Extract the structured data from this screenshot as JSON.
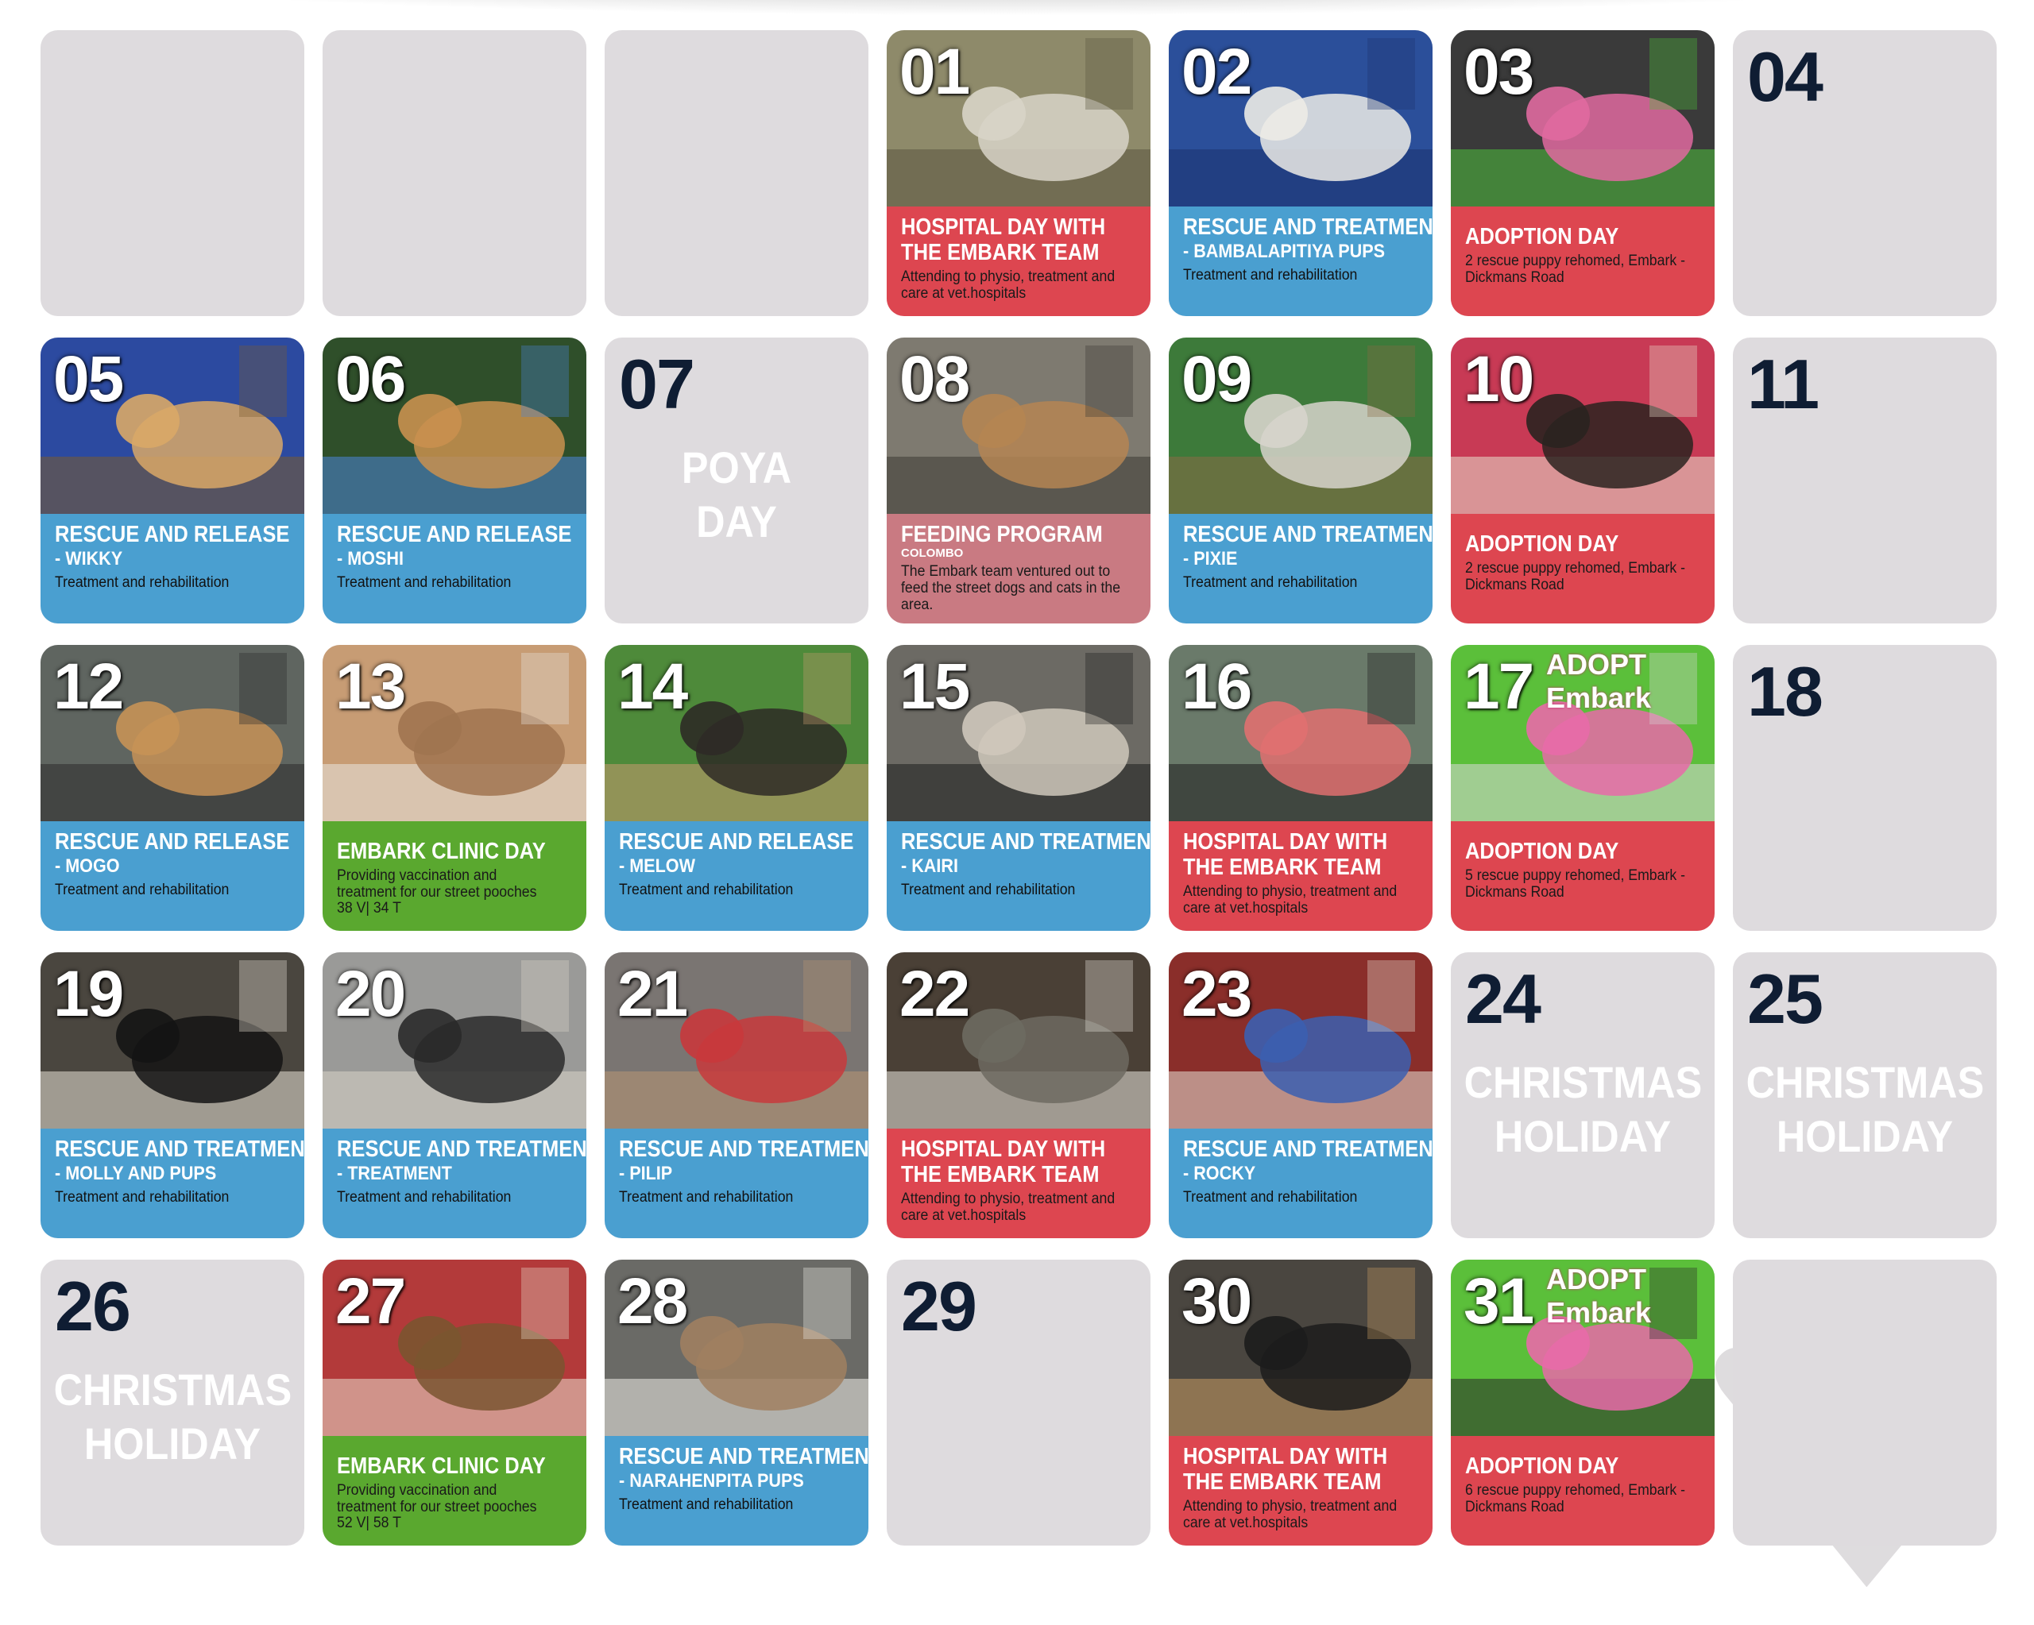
{
  "calendar": {
    "cells": [
      {
        "type": "empty"
      },
      {
        "type": "empty"
      },
      {
        "type": "empty"
      },
      {
        "type": "event",
        "day": "01",
        "color": "red",
        "title1": "HOSPITAL DAY WITH",
        "title2": "THE EMBARK TEAM",
        "desc": "Attending to physio, treatment and care at vet.hospitals",
        "photo": "dog-with-cone"
      },
      {
        "type": "event",
        "day": "02",
        "color": "blue",
        "title1": "RESCUE AND TREATMENT",
        "title2": "- BAMBALAPITIYA PUPS",
        "desc": "Treatment and rehabilitation",
        "photo": "puppies-on-blanket"
      },
      {
        "type": "event",
        "day": "03",
        "color": "red",
        "title1": "ADOPTION DAY",
        "title2": "",
        "desc": "2 rescue puppy rehomed, Embark - Dickmans Road",
        "photo": "adoption-family"
      },
      {
        "type": "plain",
        "day": "04"
      },
      {
        "type": "event",
        "day": "05",
        "color": "blue",
        "title1": "RESCUE AND RELEASE",
        "title2": "- WIKKY",
        "desc": "Treatment and rehabilitation",
        "photo": "man-holding-dog"
      },
      {
        "type": "event",
        "day": "06",
        "color": "blue",
        "title1": "RESCUE AND RELEASE",
        "title2": "- MOSHI",
        "desc": "Treatment and rehabilitation",
        "photo": "gloved-hands-dog"
      },
      {
        "type": "holiday",
        "day": "07",
        "line1": "POYA",
        "line2": "DAY"
      },
      {
        "type": "event",
        "day": "08",
        "color": "mauve",
        "title1": "FEEDING PROGRAM",
        "tag": "COLOMBO",
        "desc": "The Embark team ventured out to feed the street dogs and cats in the area.",
        "photo": "street-dogs-feeding"
      },
      {
        "type": "event",
        "day": "09",
        "color": "blue",
        "title1": "RESCUE AND TREATMENT",
        "title2": "- PIXIE",
        "desc": "Treatment and rehabilitation",
        "photo": "dog-on-green-towel"
      },
      {
        "type": "event",
        "day": "10",
        "color": "red",
        "title1": "ADOPTION DAY",
        "title2": "",
        "desc": "2 rescue puppy rehomed, Embark - Dickmans Road",
        "photo": "woman-with-puppy"
      },
      {
        "type": "plain",
        "day": "11"
      },
      {
        "type": "event",
        "day": "12",
        "color": "blue",
        "title1": "RESCUE AND RELEASE",
        "title2": "- MOGO",
        "desc": "Treatment and rehabilitation",
        "photo": "man-holding-dog-street"
      },
      {
        "type": "event",
        "day": "13",
        "color": "green",
        "title1": "EMBARK CLINIC DAY",
        "title2": "",
        "desc": "Providing vaccination and treatment for our street pooches",
        "extra": "38 V| 34 T",
        "photo": "vet-clinic"
      },
      {
        "type": "event",
        "day": "14",
        "color": "blue",
        "title1": "RESCUE AND  RELEASE",
        "title2": "- MELOW",
        "desc": "Treatment and rehabilitation",
        "photo": "man-with-dog-grass"
      },
      {
        "type": "event",
        "day": "15",
        "color": "blue",
        "title1": "RESCUE AND TREATMENT",
        "title2": "- KAIRI",
        "desc": "Treatment and rehabilitation",
        "photo": "black-dog-bed"
      },
      {
        "type": "event",
        "day": "16",
        "color": "red",
        "title1": "HOSPITAL DAY WITH",
        "title2": "THE EMBARK TEAM",
        "desc": "Attending to physio, treatment and care at vet.hospitals",
        "photo": "injured-dog"
      },
      {
        "type": "event",
        "day": "17",
        "color": "red",
        "title1": "ADOPTION DAY",
        "title2": "",
        "desc": "5 rescue puppy rehomed, Embark - Dickmans Road",
        "photo": "adoption-group",
        "sign": "ADOPT Embark"
      },
      {
        "type": "plain",
        "day": "18"
      },
      {
        "type": "event",
        "day": "19",
        "color": "blue",
        "title1": "RESCUE AND TREATMENT",
        "title2": "- MOLLY AND PUPS",
        "desc": "Treatment and rehabilitation",
        "photo": "mother-and-pups"
      },
      {
        "type": "event",
        "day": "20",
        "color": "blue",
        "title1": "RESCUE AND TREATMENT",
        "title2": "- TREATMENT",
        "desc": "Treatment and rehabilitation",
        "photo": "dog-on-table"
      },
      {
        "type": "event",
        "day": "21",
        "color": "blue",
        "title1": "RESCUE AND TREATMENT",
        "title2": "- PILIP",
        "desc": "Treatment and rehabilitation",
        "photo": "dog-muzzle"
      },
      {
        "type": "event",
        "day": "22",
        "color": "red",
        "title1": "HOSPITAL DAY WITH",
        "title2": "THE EMBARK TEAM",
        "desc": "Attending to physio, treatment and care at vet.hospitals",
        "photo": "white-dog-doorway"
      },
      {
        "type": "event",
        "day": "23",
        "color": "blue",
        "title1": "RESCUE AND TREATMENT",
        "title2": "- ROCKY",
        "desc": "Treatment and rehabilitation",
        "photo": "white-dog-lying"
      },
      {
        "type": "holiday",
        "day": "24",
        "line1": "CHRISTMAS",
        "line2": "HOLIDAY"
      },
      {
        "type": "holiday",
        "day": "25",
        "line1": "CHRISTMAS",
        "line2": "HOLIDAY"
      },
      {
        "type": "holiday",
        "day": "26",
        "line1": "CHRISTMAS",
        "line2": "HOLIDAY"
      },
      {
        "type": "event",
        "day": "27",
        "color": "green",
        "title1": "EMBARK CLINIC DAY",
        "title2": "",
        "desc": "Providing vaccination and treatment for our street pooches",
        "extra": "52 V| 58 T",
        "photo": "vet-clinic-2"
      },
      {
        "type": "event",
        "day": "28",
        "color": "blue",
        "title1": "RESCUE AND TREATMENT",
        "title2": "- NARAHENPITA PUPS",
        "desc": "Treatment and rehabilitation",
        "photo": "white-puppies-drain"
      },
      {
        "type": "plain",
        "day": "29"
      },
      {
        "type": "event",
        "day": "30",
        "color": "red",
        "title1": "HOSPITAL DAY WITH",
        "title2": "THE EMBARK TEAM",
        "desc": "Attending to physio, treatment and care at vet.hospitals",
        "photo": "tan-dog-lying"
      },
      {
        "type": "event",
        "day": "31",
        "color": "red",
        "title1": "ADOPTION DAY",
        "title2": "",
        "desc": "6 rescue puppy rehomed, Embark - Dickmans Road",
        "photo": "adoption-ladies",
        "sign": "ADOPT Embark"
      },
      {
        "type": "empty"
      }
    ]
  },
  "palette": {
    "blue": "#4a9fd0",
    "red": "#dd4650",
    "green": "#5aa82f",
    "mauve": "#c97a82",
    "empty": "#dedbde",
    "number": "#0f1d33"
  }
}
